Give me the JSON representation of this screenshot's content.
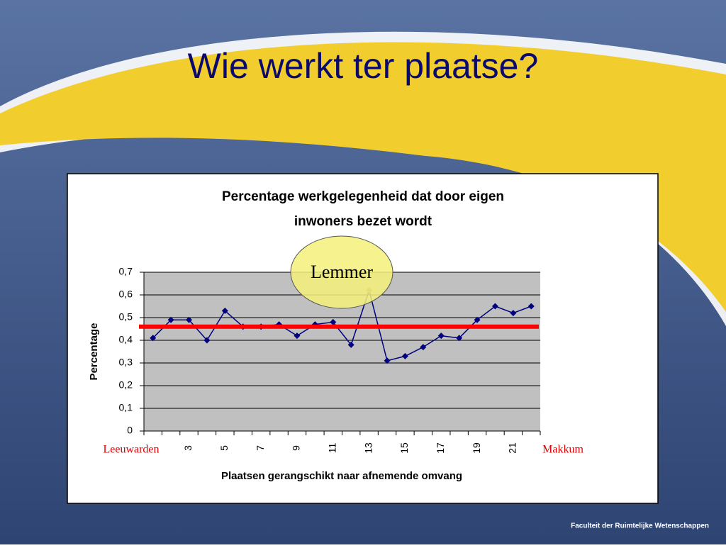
{
  "slide": {
    "title": "Wie werkt ter plaatse?",
    "footer": "Faculteit der Ruimtelijke Wetenschappen"
  },
  "chart_data": {
    "type": "line",
    "title": [
      "Percentage werkgelegenheid dat door eigen",
      "inwoners bezet wordt"
    ],
    "x_label": "Plaatsen gerangschikt naar afnemende omvang",
    "y_label": "Percentage",
    "categories": [
      null,
      null,
      "3",
      null,
      "5",
      null,
      "7",
      null,
      "9",
      null,
      "11",
      null,
      "13",
      null,
      "15",
      null,
      "17",
      null,
      "19",
      null,
      "21",
      null
    ],
    "series": [
      {
        "name": "Percentage",
        "color": "#000080",
        "values": [
          0.41,
          0.49,
          0.49,
          0.4,
          0.53,
          0.46,
          0.46,
          0.47,
          0.42,
          0.47,
          0.48,
          0.38,
          0.62,
          0.31,
          0.33,
          0.37,
          0.42,
          0.41,
          0.49,
          0.55,
          0.52,
          0.55
        ]
      }
    ],
    "ylim": [
      0,
      0.7
    ],
    "yticks": [
      0,
      {
        "value": 0.1,
        "label": "0,1"
      },
      {
        "value": 0.2,
        "label": "0,2"
      },
      {
        "value": 0.3,
        "label": "0,3"
      },
      {
        "value": 0.4,
        "label": "0,4"
      },
      {
        "value": 0.5,
        "label": "0,5"
      },
      {
        "value": 0.6,
        "label": "0,6"
      },
      {
        "value": 0.7,
        "label": "0,7"
      }
    ],
    "grid": true,
    "reference_line": {
      "value": 0.46,
      "color": "#ff0000"
    },
    "annotations": {
      "highlight": {
        "text": "Lemmer",
        "index": 12
      },
      "first": "Leeuwarden",
      "last": "Makkum"
    }
  }
}
